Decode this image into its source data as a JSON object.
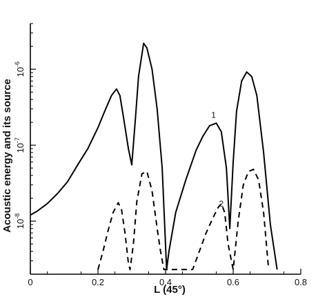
{
  "chart_data": {
    "type": "line",
    "title": "",
    "xlabel": "L (45°)",
    "ylabel": "Acoustic energy and its source",
    "xlim": [
      0,
      0.8
    ],
    "ylim": [
      2e-09,
      4e-06
    ],
    "y_scale": "log",
    "grid": false,
    "x_ticks": [
      {
        "value": 0,
        "label": "0"
      },
      {
        "value": 0.2,
        "label": "0.2"
      },
      {
        "value": 0.4,
        "label": "0.4"
      },
      {
        "value": 0.6,
        "label": "0.6"
      },
      {
        "value": 0.8,
        "label": "0.8"
      }
    ],
    "y_ticks": [
      {
        "value": 1e-08,
        "base": "10",
        "exp": "-8"
      },
      {
        "value": 1e-07,
        "base": "10",
        "exp": "-7"
      },
      {
        "value": 1e-06,
        "base": "10",
        "exp": "-6"
      }
    ],
    "series": [
      {
        "label": "1",
        "label_at": [
          0.542,
          2.3e-07
        ],
        "style": "solid",
        "color": "#000000",
        "x": [
          0.0,
          0.02,
          0.05,
          0.08,
          0.11,
          0.14,
          0.17,
          0.2,
          0.22,
          0.24,
          0.255,
          0.265,
          0.275,
          0.29,
          0.3,
          0.31,
          0.32,
          0.335,
          0.345,
          0.36,
          0.375,
          0.39,
          0.403,
          0.41,
          0.43,
          0.46,
          0.49,
          0.51,
          0.53,
          0.55,
          0.565,
          0.58,
          0.59,
          0.6,
          0.61,
          0.625,
          0.64,
          0.655,
          0.67,
          0.69,
          0.71,
          0.73
        ],
        "y": [
          1.2e-08,
          1.35e-08,
          1.7e-08,
          2.3e-08,
          3.3e-08,
          5.5e-08,
          9e-08,
          1.7e-07,
          2.8e-07,
          4.5e-07,
          5.5e-07,
          4.5e-07,
          2.4e-07,
          9e-08,
          5.5e-08,
          2e-07,
          8e-07,
          2.2e-06,
          1.9e-06,
          1e-06,
          3e-07,
          5e-08,
          2.3e-09,
          4e-09,
          1.3e-08,
          3.5e-08,
          8.5e-08,
          1.3e-07,
          1.8e-07,
          1.95e-07,
          1.5e-07,
          5e-08,
          8e-09,
          6e-08,
          2.8e-07,
          7e-07,
          9.2e-07,
          8e-07,
          4.5e-07,
          8e-08,
          9e-09,
          2.3e-09
        ]
      },
      {
        "label": "2",
        "label_at": [
          0.565,
          1.55e-08
        ],
        "style": "dashed",
        "color": "#000000",
        "x": [
          0.2,
          0.215,
          0.23,
          0.245,
          0.26,
          0.27,
          0.28,
          0.29,
          0.295,
          0.305,
          0.315,
          0.33,
          0.345,
          0.36,
          0.375,
          0.385,
          0.395,
          0.48,
          0.5,
          0.52,
          0.54,
          0.555,
          0.565,
          0.575,
          0.585,
          0.6,
          0.615,
          0.63,
          0.645,
          0.66,
          0.675,
          0.69,
          0.705
        ],
        "y": [
          2.3e-09,
          4e-09,
          7.5e-09,
          1.3e-08,
          1.75e-08,
          1.4e-08,
          7e-09,
          2.8e-09,
          2.3e-09,
          5e-09,
          1.8e-08,
          4.2e-08,
          4.5e-08,
          2.5e-08,
          8e-09,
          4e-09,
          2.3e-09,
          2.3e-09,
          4e-09,
          7e-09,
          1.1e-08,
          1.5e-08,
          1.7e-08,
          1.3e-08,
          5e-09,
          2.3e-09,
          1e-08,
          3e-08,
          4.5e-08,
          4.8e-08,
          3.5e-08,
          1.3e-08,
          2.3e-09
        ]
      }
    ]
  }
}
